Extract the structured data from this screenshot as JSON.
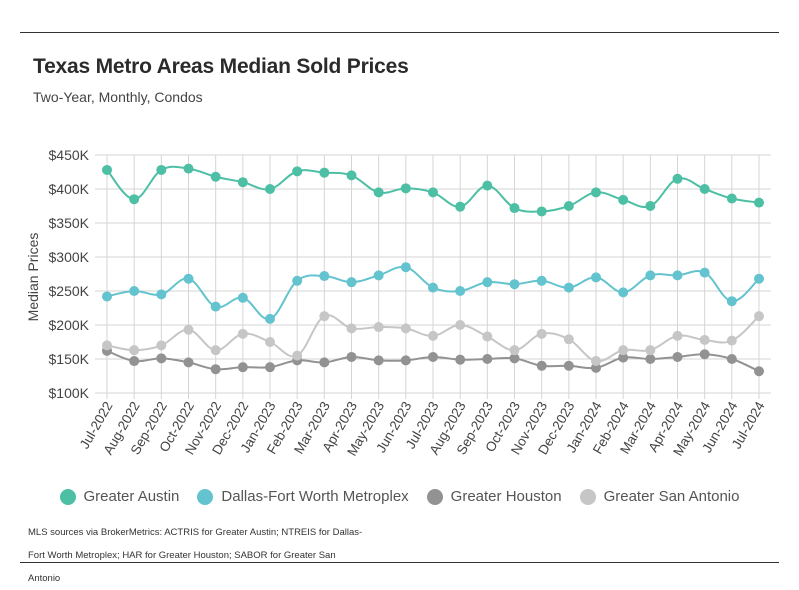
{
  "title": "Texas Metro Areas Median Sold Prices",
  "subtitle": "Two-Year, Monthly, Condos",
  "footnote": "MLS sources via BrokerMetrics: ACTRIS for Greater Austin; NTREIS for Dallas-Fort Worth Metroplex; HAR for Greater Houston; SABOR for Greater San Antonio",
  "chart_data": {
    "type": "line",
    "ylabel": "Median Prices",
    "ylim": [
      100000,
      450000
    ],
    "yticks": [
      100000,
      150000,
      200000,
      250000,
      300000,
      350000,
      400000,
      450000
    ],
    "ytick_labels": [
      "$100K",
      "$150K",
      "$200K",
      "$250K",
      "$300K",
      "$350K",
      "$400K",
      "$450K"
    ],
    "grid": true,
    "legend_position": "bottom",
    "categories": [
      "Jul-2022",
      "Aug-2022",
      "Sep-2022",
      "Oct-2022",
      "Nov-2022",
      "Dec-2022",
      "Jan-2023",
      "Feb-2023",
      "Mar-2023",
      "Apr-2023",
      "May-2023",
      "Jun-2023",
      "Jul-2023",
      "Aug-2023",
      "Sep-2023",
      "Oct-2023",
      "Nov-2023",
      "Dec-2023",
      "Jan-2024",
      "Feb-2024",
      "Mar-2024",
      "Apr-2024",
      "May-2024",
      "Jun-2024",
      "Jul-2024"
    ],
    "series": [
      {
        "name": "Greater Austin",
        "color": "#4dbfa5",
        "values": [
          428000,
          385000,
          428000,
          430000,
          418000,
          410000,
          400000,
          426000,
          424000,
          420000,
          395000,
          401000,
          395000,
          374000,
          405000,
          372000,
          367000,
          375000,
          395000,
          384000,
          375000,
          415000,
          400000,
          386000,
          380000
        ]
      },
      {
        "name": "Dallas-Fort Worth Metroplex",
        "color": "#63c3ce",
        "values": [
          242000,
          250000,
          245000,
          268000,
          227000,
          240000,
          209000,
          265000,
          272000,
          263000,
          273000,
          285000,
          255000,
          250000,
          263000,
          260000,
          265000,
          255000,
          270000,
          248000,
          273000,
          273000,
          277000,
          235000,
          268000
        ]
      },
      {
        "name": "Greater Houston",
        "color": "#929292",
        "values": [
          162000,
          147000,
          151000,
          145000,
          135000,
          138000,
          138000,
          148000,
          145000,
          153000,
          148000,
          148000,
          153000,
          149000,
          150000,
          151000,
          140000,
          140000,
          137000,
          152000,
          150000,
          153000,
          157000,
          150000,
          132000
        ]
      },
      {
        "name": "Greater San Antonio",
        "color": "#c6c6c6",
        "values": [
          170000,
          163000,
          170000,
          193000,
          163000,
          187000,
          175000,
          155000,
          213000,
          195000,
          197000,
          195000,
          184000,
          200000,
          183000,
          163000,
          187000,
          179000,
          147000,
          163000,
          163000,
          184000,
          178000,
          177000,
          213000
        ]
      }
    ]
  }
}
